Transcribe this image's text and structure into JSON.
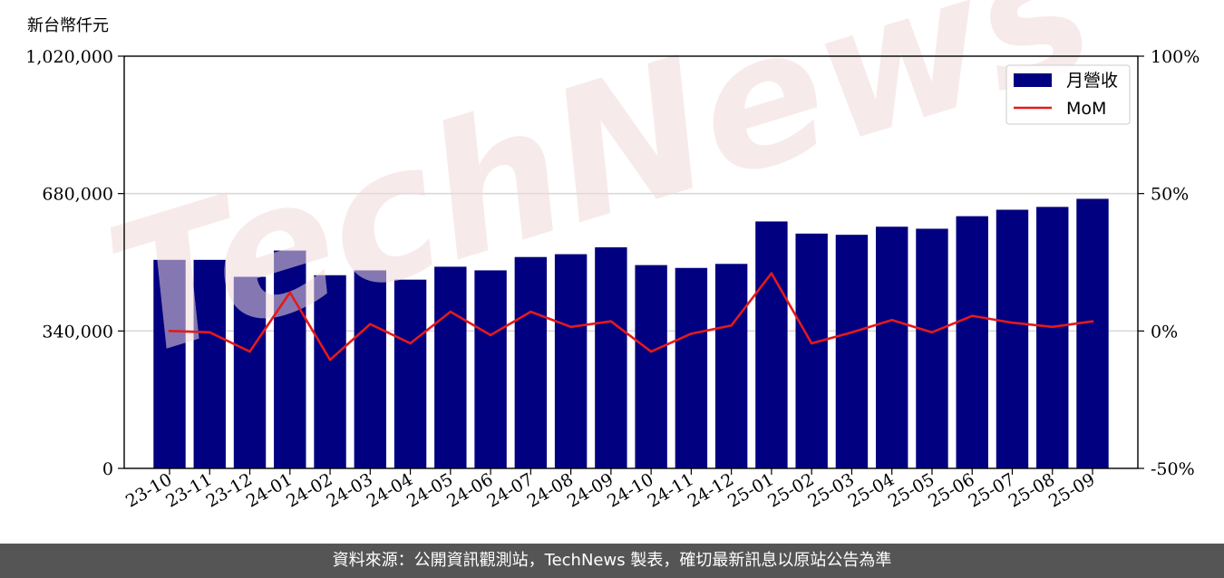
{
  "watermark": "TechNews",
  "footer": {
    "source_text": "資料來源：公開資訊觀測站，TechNews 製表，確切最新訊息以原站公告為準"
  },
  "colors": {
    "bar": "#000080",
    "line": "#e31a1c",
    "grid": "#d9d9d9"
  },
  "chart_data": {
    "type": "bar",
    "title": "",
    "xlabel": "",
    "ylabel": "新台幣仟元",
    "ylabel_right": "",
    "categories": [
      "23-10",
      "23-11",
      "23-12",
      "24-01",
      "24-02",
      "24-03",
      "24-04",
      "24-05",
      "24-06",
      "24-07",
      "24-08",
      "24-09",
      "24-10",
      "24-11",
      "24-12",
      "25-01",
      "25-02",
      "25-03",
      "25-04",
      "25-05",
      "25-06",
      "25-07",
      "25-08",
      "25-09"
    ],
    "series": [
      {
        "name": "月營收",
        "type": "bar",
        "axis": "left",
        "values": [
          516000,
          516000,
          474000,
          539000,
          478000,
          490000,
          467000,
          499000,
          490000,
          523000,
          530000,
          547000,
          503000,
          496000,
          506000,
          611000,
          581000,
          578000,
          598000,
          593000,
          624000,
          640000,
          647000,
          667000
        ]
      },
      {
        "name": "MoM",
        "type": "line",
        "axis": "right",
        "values": [
          0.0,
          -0.5,
          -7.5,
          14.0,
          -10.5,
          2.5,
          -4.5,
          7.0,
          -1.5,
          7.0,
          1.5,
          3.5,
          -7.5,
          -1.0,
          2.0,
          21.0,
          -4.5,
          -0.5,
          4.0,
          -0.5,
          5.5,
          3.0,
          1.5,
          3.5
        ]
      }
    ],
    "ylim": [
      0,
      1020000
    ],
    "yticks": [
      0,
      340000,
      680000,
      1020000
    ],
    "ytick_labels": [
      "0",
      "340,000",
      "680,000",
      "1,020,000"
    ],
    "y2lim": [
      -50,
      100
    ],
    "y2ticks": [
      -50,
      0,
      50,
      100
    ],
    "y2tick_labels": [
      "-50%",
      "0%",
      "50%",
      "100%"
    ],
    "grid": "horizontal",
    "legend": "top-right"
  }
}
